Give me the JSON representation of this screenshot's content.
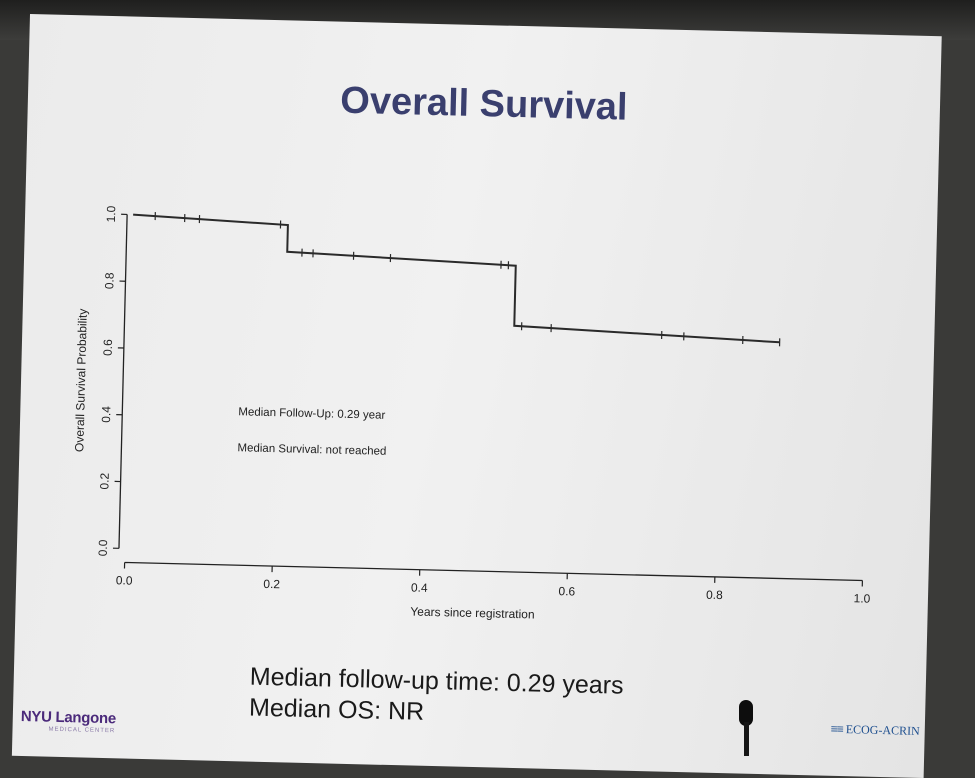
{
  "slide": {
    "title": "Overall Survival",
    "summary_line1": "Median follow-up time: 0.29 years",
    "summary_line2": "Median OS: NR"
  },
  "logos": {
    "left_name": "NYU Langone",
    "left_sub": "MEDICAL CENTER",
    "right_name": "ECOG-ACRIN"
  },
  "colors": {
    "title": "#3a3f6e",
    "curve": "#2a2a2a",
    "nyu_purple": "#4b2a7b",
    "ecog_blue": "#1e4f8f"
  },
  "chart_data": {
    "type": "line",
    "subtype": "kaplan-meier-step",
    "title": "",
    "xlabel": "Years since registration",
    "ylabel": "Overall Survival Probability",
    "xlim": [
      0,
      1
    ],
    "ylim": [
      0,
      1
    ],
    "x_ticks": [
      "0.0",
      "0.2",
      "0.4",
      "0.6",
      "0.8",
      "1.0"
    ],
    "y_ticks": [
      "0.0",
      "0.2",
      "0.4",
      "0.6",
      "0.8",
      "1.0"
    ],
    "grid": false,
    "series": [
      {
        "steps": [
          {
            "x": 0.0,
            "y": 1.0
          },
          {
            "x": 0.21,
            "y": 0.98
          },
          {
            "x": 0.21,
            "y": 0.9
          },
          {
            "x": 0.52,
            "y": 0.875
          },
          {
            "x": 0.52,
            "y": 0.695
          },
          {
            "x": 0.88,
            "y": 0.665
          }
        ],
        "censor_x": [
          0.03,
          0.07,
          0.09,
          0.2,
          0.23,
          0.245,
          0.3,
          0.35,
          0.5,
          0.51,
          0.53,
          0.57,
          0.72,
          0.75,
          0.83,
          0.88
        ]
      }
    ],
    "annotations": [
      "Median Follow-Up: 0.29 year",
      "Median Survival: not reached"
    ]
  }
}
